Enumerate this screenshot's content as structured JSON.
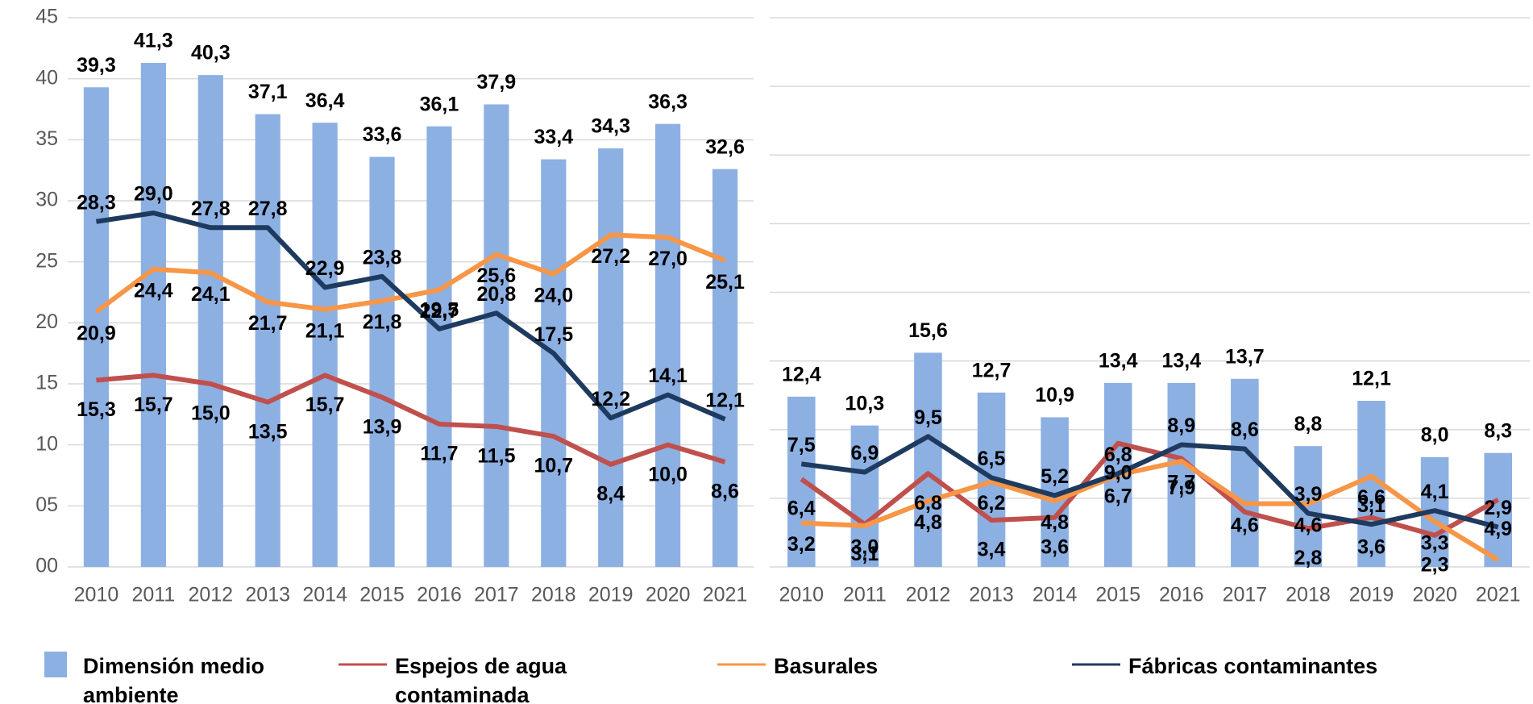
{
  "chart_data": [
    {
      "type": "combo",
      "legend": "bottom",
      "grid": true,
      "ytick_labels": true,
      "categories": [
        "2010",
        "2011",
        "2012",
        "2013",
        "2014",
        "2015",
        "2016",
        "2017",
        "2018",
        "2019",
        "2020",
        "2021"
      ],
      "ylim": [
        0,
        45
      ],
      "yticks": [
        {
          "value": 0,
          "label": "00"
        },
        {
          "value": 5,
          "label": "05"
        },
        10,
        15,
        20,
        25,
        30,
        35,
        40,
        45
      ],
      "series": [
        {
          "name": "Dimensión medio ambiente",
          "type": "bar",
          "color": "#8db0e3",
          "values": [
            39.3,
            41.3,
            40.3,
            37.1,
            36.4,
            33.6,
            36.1,
            37.9,
            33.4,
            34.3,
            36.3,
            32.6
          ],
          "value_labels": [
            "39,3",
            "41,3",
            "40,3",
            "37,1",
            "36,4",
            "33,6",
            "36,1",
            "37,9",
            "33,4",
            "34,3",
            "36,3",
            "32,6"
          ]
        },
        {
          "name": "Espejos de agua contaminada",
          "type": "line",
          "color": "#c0504d",
          "values": [
            15.3,
            15.7,
            15.0,
            13.5,
            15.7,
            13.9,
            11.7,
            11.5,
            10.7,
            8.4,
            10.0,
            8.6
          ],
          "value_labels": [
            "15,3",
            "15,7",
            "15,0",
            "13,5",
            "15,7",
            "13,9",
            "11,7",
            "11,5",
            "10,7",
            "8,4",
            "10,0",
            "8,6"
          ]
        },
        {
          "name": "Basurales",
          "type": "line",
          "color": "#f79646",
          "values": [
            20.9,
            24.4,
            24.1,
            21.7,
            21.1,
            21.8,
            22.7,
            25.6,
            24.0,
            27.2,
            27.0,
            25.1
          ],
          "value_labels": [
            "20,9",
            "24,4",
            "24,1",
            "21,7",
            "21,1",
            "21,8",
            "22,7",
            "25,6",
            "24,0",
            "27,2",
            "27,0",
            "25,1"
          ]
        },
        {
          "name": "Fábricas contaminantes",
          "type": "line",
          "color": "#1f3a5f",
          "values": [
            28.3,
            29.0,
            27.8,
            27.8,
            22.9,
            23.8,
            19.5,
            20.8,
            17.5,
            12.2,
            14.1,
            12.1
          ],
          "value_labels": [
            "28,3",
            "29,0",
            "27,8",
            "27,8",
            "22,9",
            "23,8",
            "19,5",
            "20,8",
            "17,5",
            "12,2",
            "14,1",
            "12,1"
          ]
        }
      ]
    },
    {
      "type": "combo",
      "grid": true,
      "ytick_labels": false,
      "categories": [
        "2010",
        "2011",
        "2012",
        "2013",
        "2014",
        "2015",
        "2016",
        "2017",
        "2018",
        "2019",
        "2020",
        "2021"
      ],
      "ylim": [
        0,
        40
      ],
      "yticks": [
        0,
        5,
        10,
        15,
        20,
        25,
        30,
        35,
        40
      ],
      "series": [
        {
          "name": "Dimensión medio ambiente",
          "type": "bar",
          "color": "#8db0e3",
          "values": [
            12.4,
            10.3,
            15.6,
            12.7,
            10.9,
            13.4,
            13.4,
            13.7,
            8.8,
            12.1,
            8.0,
            8.3
          ],
          "value_labels": [
            "12,4",
            "10,3",
            "15,6",
            "12,7",
            "10,9",
            "13,4",
            "13,4",
            "13,7",
            "8,8",
            "12,1",
            "8,0",
            "8,3"
          ]
        },
        {
          "name": "Espejos de agua contaminada",
          "type": "line",
          "color": "#c0504d",
          "values": [
            6.4,
            3.1,
            6.8,
            3.4,
            3.6,
            9.0,
            7.9,
            4.0,
            2.8,
            3.6,
            2.3,
            4.9
          ],
          "value_labels": [
            "6,4",
            "3,1",
            "6,8",
            "3,4",
            "3,6",
            "9,0",
            "7,9",
            null,
            "2,8",
            "3,6",
            "2,3",
            "4,9"
          ]
        },
        {
          "name": "Basurales",
          "type": "line",
          "color": "#f79646",
          "values": [
            3.2,
            3.0,
            4.8,
            6.2,
            4.8,
            6.7,
            7.7,
            4.6,
            4.6,
            6.6,
            3.3,
            0.5
          ],
          "value_labels": [
            "3,2",
            "3,0",
            "4,8",
            "6,2",
            "4,8",
            "6,7",
            "7,7",
            "4,6",
            "4,6",
            "6,6",
            "3,3",
            null
          ]
        },
        {
          "name": "Fábricas contaminantes",
          "type": "line",
          "color": "#1f3a5f",
          "values": [
            7.5,
            6.9,
            9.5,
            6.5,
            5.2,
            6.8,
            8.9,
            8.6,
            3.9,
            3.1,
            4.1,
            2.9
          ],
          "value_labels": [
            "7,5",
            "6,9",
            "9,5",
            "6,5",
            "5,2",
            "6,8",
            "8,9",
            "8,6",
            "3,9",
            "3,1",
            "4,1",
            "2,9"
          ]
        }
      ]
    }
  ]
}
